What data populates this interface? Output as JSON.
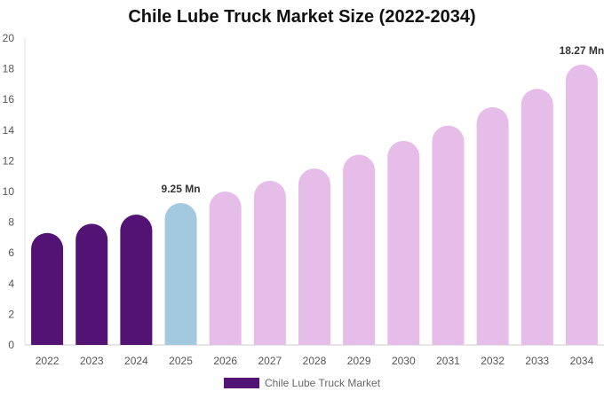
{
  "chart_data": {
    "type": "bar",
    "title": "Chile Lube Truck Market Size (2022-2034)",
    "categories": [
      "2022",
      "2023",
      "2024",
      "2025",
      "2026",
      "2027",
      "2028",
      "2029",
      "2030",
      "2031",
      "2032",
      "2033",
      "2034"
    ],
    "series": [
      {
        "name": "Chile Lube Truck Market",
        "values": [
          7.3,
          7.9,
          8.5,
          9.25,
          10.0,
          10.7,
          11.5,
          12.4,
          13.3,
          14.3,
          15.5,
          16.7,
          18.27
        ]
      }
    ],
    "data_labels": [
      {
        "category": "2025",
        "text": "9.25 Mn"
      },
      {
        "category": "2034",
        "text": "18.27 Mn"
      }
    ],
    "ylim": [
      0,
      20
    ],
    "yticks": [
      0,
      2,
      4,
      6,
      8,
      10,
      12,
      14,
      16,
      18,
      20
    ],
    "colors": {
      "historical": "#521375",
      "current": "#a3c9df",
      "forecast": "#e6bde9"
    },
    "legend": {
      "position": "bottom",
      "swatch_color": "#521375"
    },
    "grid": false
  }
}
